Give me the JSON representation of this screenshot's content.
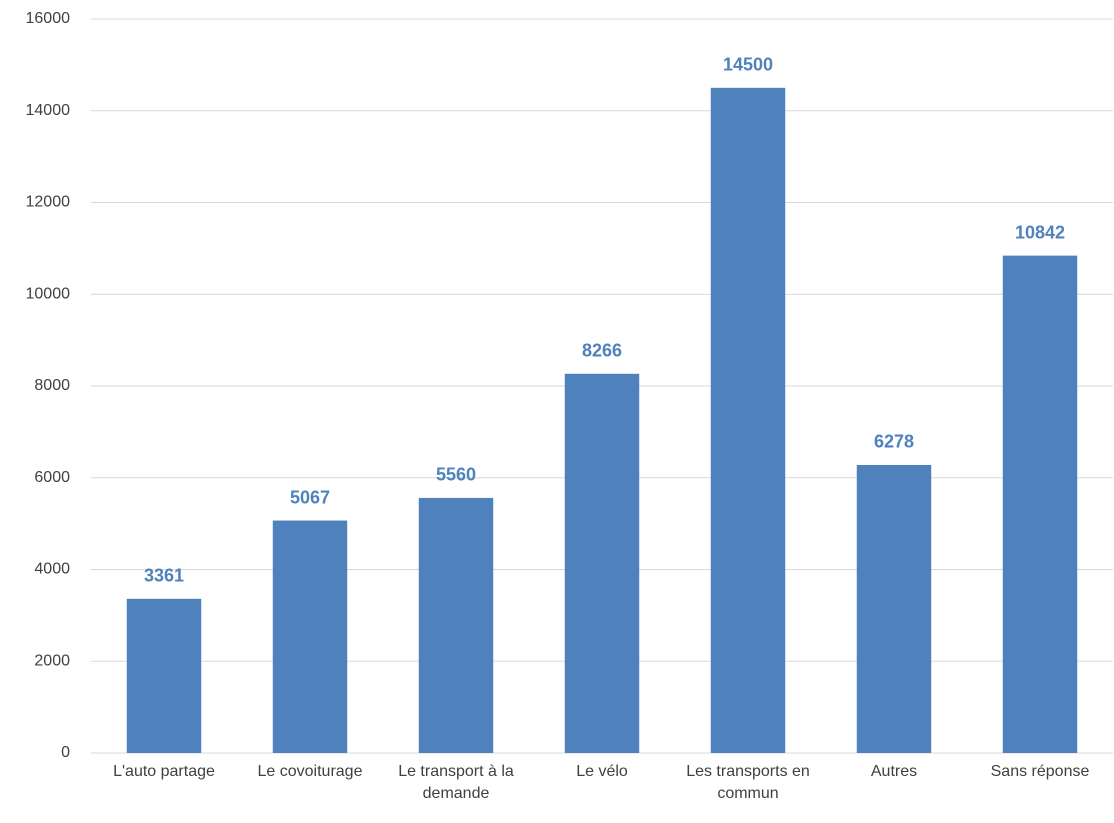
{
  "chart_data": {
    "type": "bar",
    "categories": [
      "L'auto partage",
      "Le covoiturage",
      "Le transport à la demande",
      "Le vélo",
      "Les transports en commun",
      "Autres",
      "Sans réponse"
    ],
    "values": [
      3361,
      5067,
      5560,
      8266,
      14500,
      6278,
      10842
    ],
    "color": "#4f81bd",
    "label_color": "#4f81bd",
    "ylim": [
      0,
      16000
    ],
    "yticks": [
      0,
      2000,
      4000,
      6000,
      8000,
      10000,
      12000,
      14000,
      16000
    ],
    "grid": true
  }
}
